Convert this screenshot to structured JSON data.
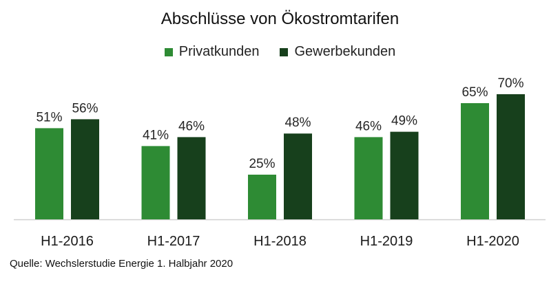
{
  "chart_data": {
    "type": "bar",
    "title": "Abschlüsse von Ökostromtarifen",
    "categories": [
      "H1-2016",
      "H1-2017",
      "H1-2018",
      "H1-2019",
      "H1-2020"
    ],
    "series": [
      {
        "name": "Privatkunden",
        "color": "#2e8b34",
        "values": [
          51,
          41,
          25,
          46,
          65
        ],
        "labels": [
          "51%",
          "41%",
          "25%",
          "46%",
          "65%"
        ]
      },
      {
        "name": "Gewerbekunden",
        "color": "#17401c",
        "values": [
          56,
          46,
          48,
          49,
          70
        ],
        "labels": [
          "56%",
          "46%",
          "48%",
          "49%",
          "70%"
        ]
      }
    ],
    "ylim": [
      0,
      70
    ],
    "grid": false,
    "legend_position": "top-center",
    "source": "Quelle: Wechslerstudie Energie 1. Halbjahr 2020"
  }
}
